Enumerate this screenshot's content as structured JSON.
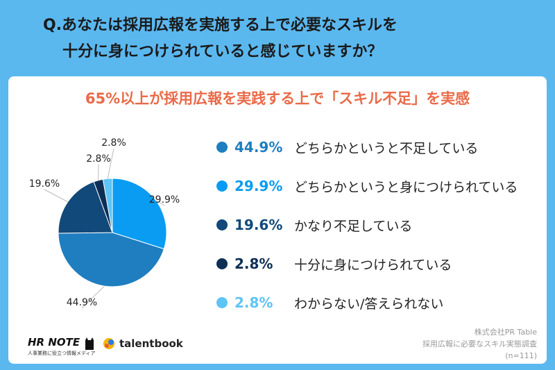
{
  "question": {
    "line1": "Q.あなたは採用広報を実施する上で必要なスキルを",
    "line2": "十分に身につけられていると感じていますか？"
  },
  "headline": "65%以上が採用広報を実践する上で「スキル不足」を実感",
  "chart_data": {
    "type": "pie",
    "title": "",
    "slices": [
      {
        "label": "どちらかというと身につけられている",
        "value": 29.9,
        "display": "29.9%",
        "color": "#0a9cf2"
      },
      {
        "label": "どちらかというと不足している",
        "value": 44.9,
        "display": "44.9%",
        "color": "#1e7ec0"
      },
      {
        "label": "かなり不足している",
        "value": 19.6,
        "display": "19.6%",
        "color": "#11497a"
      },
      {
        "label": "十分に身につけられている",
        "value": 2.8,
        "display": "2.8%",
        "color": "#0d2f56"
      },
      {
        "label": "わからない/答えられない",
        "value": 2.8,
        "display": "2.8%",
        "color": "#5fc4f6"
      }
    ]
  },
  "legend": [
    {
      "pct": "44.9%",
      "label": "どちらかというと不足している",
      "color": "#1e7ec0"
    },
    {
      "pct": "29.9%",
      "label": "どちらかというと身につけられている",
      "color": "#0a9cf2"
    },
    {
      "pct": "19.6%",
      "label": "かなり不足している",
      "color": "#11497a"
    },
    {
      "pct": "2.8%",
      "label": "十分に身につけられている",
      "color": "#0d2f56"
    },
    {
      "pct": "2.8%",
      "label": "わからない/答えられない",
      "color": "#5fc4f6"
    }
  ],
  "footer": {
    "hr_logo": "HR NOTE",
    "hr_sub": "人事業務に役立つ情報メディア",
    "talentbook": "talentbook",
    "source_company": "株式会社PR Table",
    "source_survey": "採用広報に必要なスキル実態調査",
    "source_n": "(n=111)"
  }
}
